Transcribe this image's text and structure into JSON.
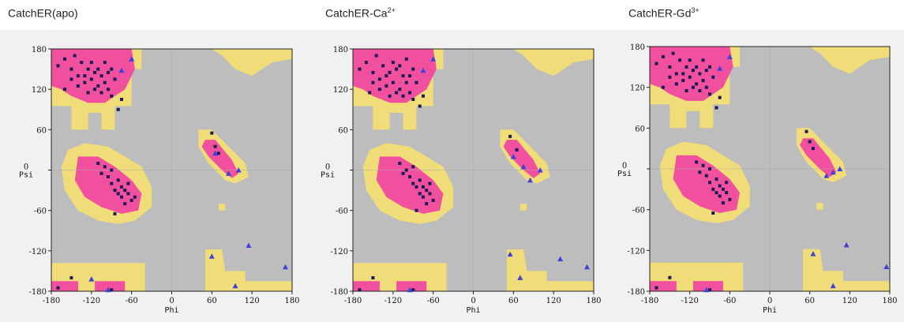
{
  "colors": {
    "background": "#bdbdbd",
    "allowed": "#f0dc78",
    "core": "#f0509e",
    "point_residue": "#1a1a55",
    "point_glycine": "#4040d8"
  },
  "chart_data": [
    {
      "type": "scatter",
      "title": "CatchER(apo)",
      "title_main": "CatchER(apo)",
      "title_sup": "",
      "xlabel": "Phi",
      "ylabel": "Psi",
      "xlim": [
        -180,
        180
      ],
      "ylim": [
        -180,
        180
      ],
      "xticks": [
        "-180",
        "-120",
        "-60",
        "0",
        "60",
        "120",
        "180"
      ],
      "yticks": [
        "180",
        "120",
        "60",
        "0",
        "-60",
        "-120",
        "-180"
      ],
      "series": [
        {
          "marker": "square",
          "points": [
            [
              -160,
              165
            ],
            [
              -150,
              150
            ],
            [
              -145,
              170
            ],
            [
              -140,
              140
            ],
            [
              -135,
              160
            ],
            [
              -130,
              130
            ],
            [
              -125,
              150
            ],
            [
              -120,
              135
            ],
            [
              -115,
              145
            ],
            [
              -110,
              125
            ],
            [
              -105,
              140
            ],
            [
              -100,
              130
            ],
            [
              -95,
              120
            ],
            [
              -90,
              110
            ],
            [
              -85,
              135
            ],
            [
              -125,
              115
            ],
            [
              -140,
              125
            ],
            [
              -150,
              135
            ],
            [
              -110,
              150
            ],
            [
              -100,
              160
            ],
            [
              -95,
              145
            ],
            [
              -170,
              155
            ],
            [
              -80,
              90
            ],
            [
              -75,
              105
            ],
            [
              -115,
              120
            ],
            [
              -130,
              140
            ],
            [
              -105,
              115
            ],
            [
              -160,
              120
            ],
            [
              -90,
              150
            ],
            [
              -120,
              160
            ],
            [
              -100,
              5
            ],
            [
              -95,
              -10
            ],
            [
              -90,
              -20
            ],
            [
              -85,
              -30
            ],
            [
              -80,
              -35
            ],
            [
              -75,
              -40
            ],
            [
              -70,
              -30
            ],
            [
              -65,
              -20
            ],
            [
              -60,
              -45
            ],
            [
              -70,
              -50
            ],
            [
              -80,
              -15
            ],
            [
              -90,
              0
            ],
            [
              -105,
              -5
            ],
            [
              -110,
              10
            ],
            [
              -75,
              -25
            ],
            [
              -65,
              -35
            ],
            [
              -55,
              -40
            ],
            [
              -85,
              -65
            ],
            [
              65,
              35
            ],
            [
              70,
              25
            ],
            [
              60,
              55
            ],
            [
              -150,
              -160
            ],
            [
              -170,
              -175
            ],
            [
              -90,
              -178
            ]
          ]
        },
        {
          "marker": "triangle",
          "points": [
            [
              -75,
              148
            ],
            [
              -60,
              165
            ],
            [
              65,
              25
            ],
            [
              85,
              -5
            ],
            [
              100,
              0
            ],
            [
              115,
              -112
            ],
            [
              60,
              -128
            ],
            [
              95,
              -172
            ],
            [
              -120,
              -162
            ],
            [
              -95,
              -178
            ],
            [
              170,
              -144
            ]
          ]
        }
      ]
    },
    {
      "type": "scatter",
      "title": "CatchER-Ca2+",
      "title_main": "CatchER-Ca",
      "title_sup": "2+",
      "xlabel": "Phi",
      "ylabel": "Psi",
      "xlim": [
        -180,
        180
      ],
      "ylim": [
        -180,
        180
      ],
      "xticks": [
        "-180",
        "-120",
        "-60",
        "0",
        "60",
        "120",
        "180"
      ],
      "yticks": [
        "180",
        "120",
        "60",
        "0",
        "-60",
        "-120",
        "-180"
      ],
      "series": [
        {
          "marker": "square",
          "points": [
            [
              -160,
              160
            ],
            [
              -150,
              145
            ],
            [
              -145,
              170
            ],
            [
              -140,
              135
            ],
            [
              -135,
              155
            ],
            [
              -130,
              125
            ],
            [
              -125,
              145
            ],
            [
              -120,
              130
            ],
            [
              -115,
              150
            ],
            [
              -110,
              120
            ],
            [
              -105,
              140
            ],
            [
              -100,
              130
            ],
            [
              -95,
              115
            ],
            [
              -90,
              105
            ],
            [
              -85,
              130
            ],
            [
              -125,
              110
            ],
            [
              -140,
              120
            ],
            [
              -150,
              130
            ],
            [
              -110,
              155
            ],
            [
              -100,
              165
            ],
            [
              -95,
              140
            ],
            [
              -170,
              150
            ],
            [
              -80,
              95
            ],
            [
              -75,
              110
            ],
            [
              -115,
              115
            ],
            [
              -130,
              140
            ],
            [
              -105,
              110
            ],
            [
              -155,
              115
            ],
            [
              -90,
              150
            ],
            [
              -120,
              160
            ],
            [
              -100,
              0
            ],
            [
              -95,
              -10
            ],
            [
              -90,
              -20
            ],
            [
              -85,
              -25
            ],
            [
              -80,
              -35
            ],
            [
              -75,
              -40
            ],
            [
              -70,
              -30
            ],
            [
              -65,
              -20
            ],
            [
              -60,
              -45
            ],
            [
              -70,
              -50
            ],
            [
              -80,
              -15
            ],
            [
              -90,
              5
            ],
            [
              -105,
              -5
            ],
            [
              -110,
              10
            ],
            [
              -75,
              -25
            ],
            [
              -65,
              -35
            ],
            [
              -85,
              -60
            ],
            [
              55,
              50
            ],
            [
              65,
              30
            ],
            [
              -150,
              -160
            ],
            [
              -170,
              -178
            ],
            [
              -90,
              -178
            ]
          ]
        },
        {
          "marker": "triangle",
          "points": [
            [
              -75,
              148
            ],
            [
              -60,
              165
            ],
            [
              60,
              20
            ],
            [
              75,
              5
            ],
            [
              85,
              -15
            ],
            [
              100,
              0
            ],
            [
              55,
              -125
            ],
            [
              130,
              -132
            ],
            [
              70,
              -160
            ],
            [
              170,
              -144
            ],
            [
              -95,
              -178
            ]
          ]
        }
      ]
    },
    {
      "type": "scatter",
      "title": "CatchER-Gd3+",
      "title_main": "CatchER-Gd",
      "title_sup": "3+",
      "xlabel": "Phi",
      "ylabel": "Psi",
      "xlim": [
        -180,
        180
      ],
      "ylim": [
        -180,
        180
      ],
      "xticks": [
        "-180",
        "-120",
        "-60",
        "0",
        "60",
        "120",
        "180"
      ],
      "yticks": [
        "180",
        "120",
        "60",
        "0",
        "-60",
        "-120",
        "-180"
      ],
      "series": [
        {
          "marker": "square",
          "points": [
            [
              -160,
              165
            ],
            [
              -150,
              150
            ],
            [
              -145,
              170
            ],
            [
              -140,
              140
            ],
            [
              -135,
              160
            ],
            [
              -130,
              130
            ],
            [
              -125,
              150
            ],
            [
              -120,
              135
            ],
            [
              -115,
              145
            ],
            [
              -110,
              125
            ],
            [
              -105,
              140
            ],
            [
              -100,
              130
            ],
            [
              -95,
              120
            ],
            [
              -90,
              110
            ],
            [
              -85,
              135
            ],
            [
              -125,
              115
            ],
            [
              -140,
              125
            ],
            [
              -150,
              135
            ],
            [
              -110,
              150
            ],
            [
              -100,
              160
            ],
            [
              -95,
              145
            ],
            [
              -170,
              155
            ],
            [
              -80,
              90
            ],
            [
              -75,
              105
            ],
            [
              -115,
              120
            ],
            [
              -130,
              140
            ],
            [
              -105,
              115
            ],
            [
              -160,
              120
            ],
            [
              -90,
              150
            ],
            [
              -120,
              160
            ],
            [
              -100,
              5
            ],
            [
              -95,
              -10
            ],
            [
              -90,
              -20
            ],
            [
              -85,
              -30
            ],
            [
              -80,
              -35
            ],
            [
              -75,
              -40
            ],
            [
              -70,
              -30
            ],
            [
              -65,
              -20
            ],
            [
              -60,
              -45
            ],
            [
              -70,
              -50
            ],
            [
              -80,
              -15
            ],
            [
              -90,
              0
            ],
            [
              -105,
              -5
            ],
            [
              -110,
              10
            ],
            [
              -75,
              -25
            ],
            [
              -65,
              -35
            ],
            [
              -85,
              -65
            ],
            [
              55,
              55
            ],
            [
              60,
              40
            ],
            [
              65,
              30
            ],
            [
              -150,
              -160
            ],
            [
              -170,
              -175
            ],
            [
              -90,
              -178
            ]
          ]
        },
        {
          "marker": "triangle",
          "points": [
            [
              -75,
              148
            ],
            [
              -60,
              165
            ],
            [
              85,
              -10
            ],
            [
              95,
              -5
            ],
            [
              105,
              0
            ],
            [
              65,
              -125
            ],
            [
              115,
              -112
            ],
            [
              95,
              -172
            ],
            [
              175,
              -144
            ],
            [
              -95,
              -178
            ]
          ]
        }
      ]
    }
  ]
}
